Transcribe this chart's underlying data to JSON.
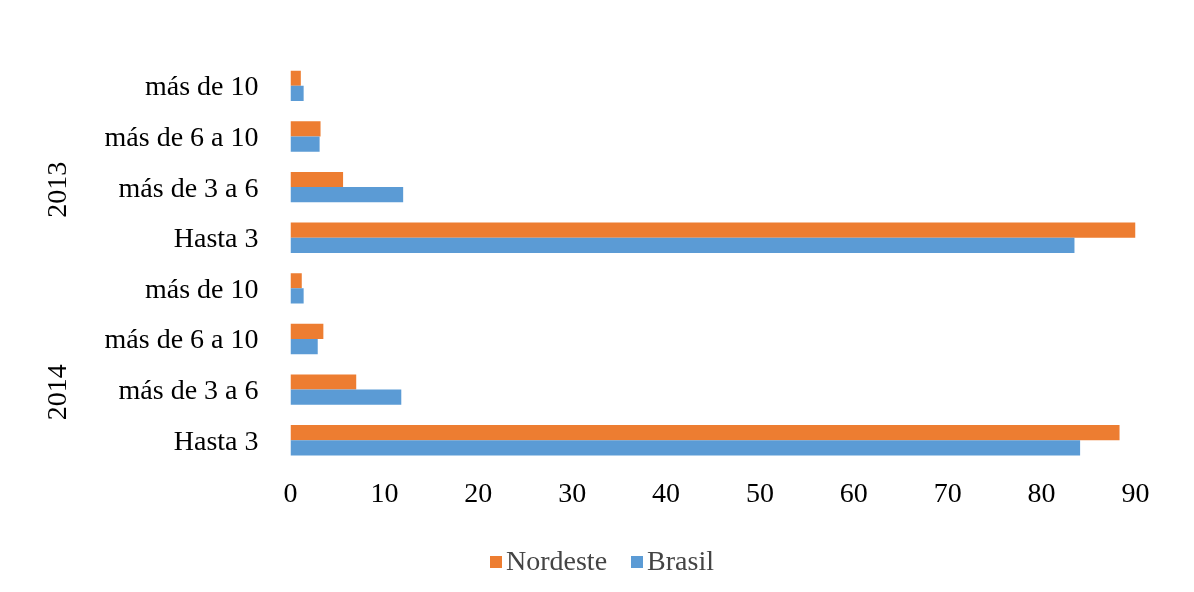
{
  "chart_data": {
    "type": "bar",
    "orientation": "horizontal",
    "categories": [
      "más de 10",
      "más de 6 a 10",
      "más de 3 a 6",
      "Hasta 3",
      "más de 10",
      "más de 6 a 10",
      "más de 3 a 6",
      "Hasta 3"
    ],
    "series": [
      {
        "name": "Nordeste",
        "color": "#ed7d31",
        "values": [
          1.1,
          3.2,
          5.6,
          90,
          1.2,
          3.5,
          7.0,
          88.3
        ]
      },
      {
        "name": "Brasil",
        "color": "#5b9bd5",
        "values": [
          1.4,
          3.1,
          12.0,
          83.5,
          1.4,
          2.9,
          11.8,
          84.1
        ]
      }
    ],
    "xlim": [
      0,
      90
    ],
    "xticks": [
      0,
      10,
      20,
      30,
      40,
      50,
      60,
      70,
      80,
      90
    ],
    "annotations": [
      "2013",
      "2014"
    ],
    "legend": "bottom",
    "grid": false
  }
}
